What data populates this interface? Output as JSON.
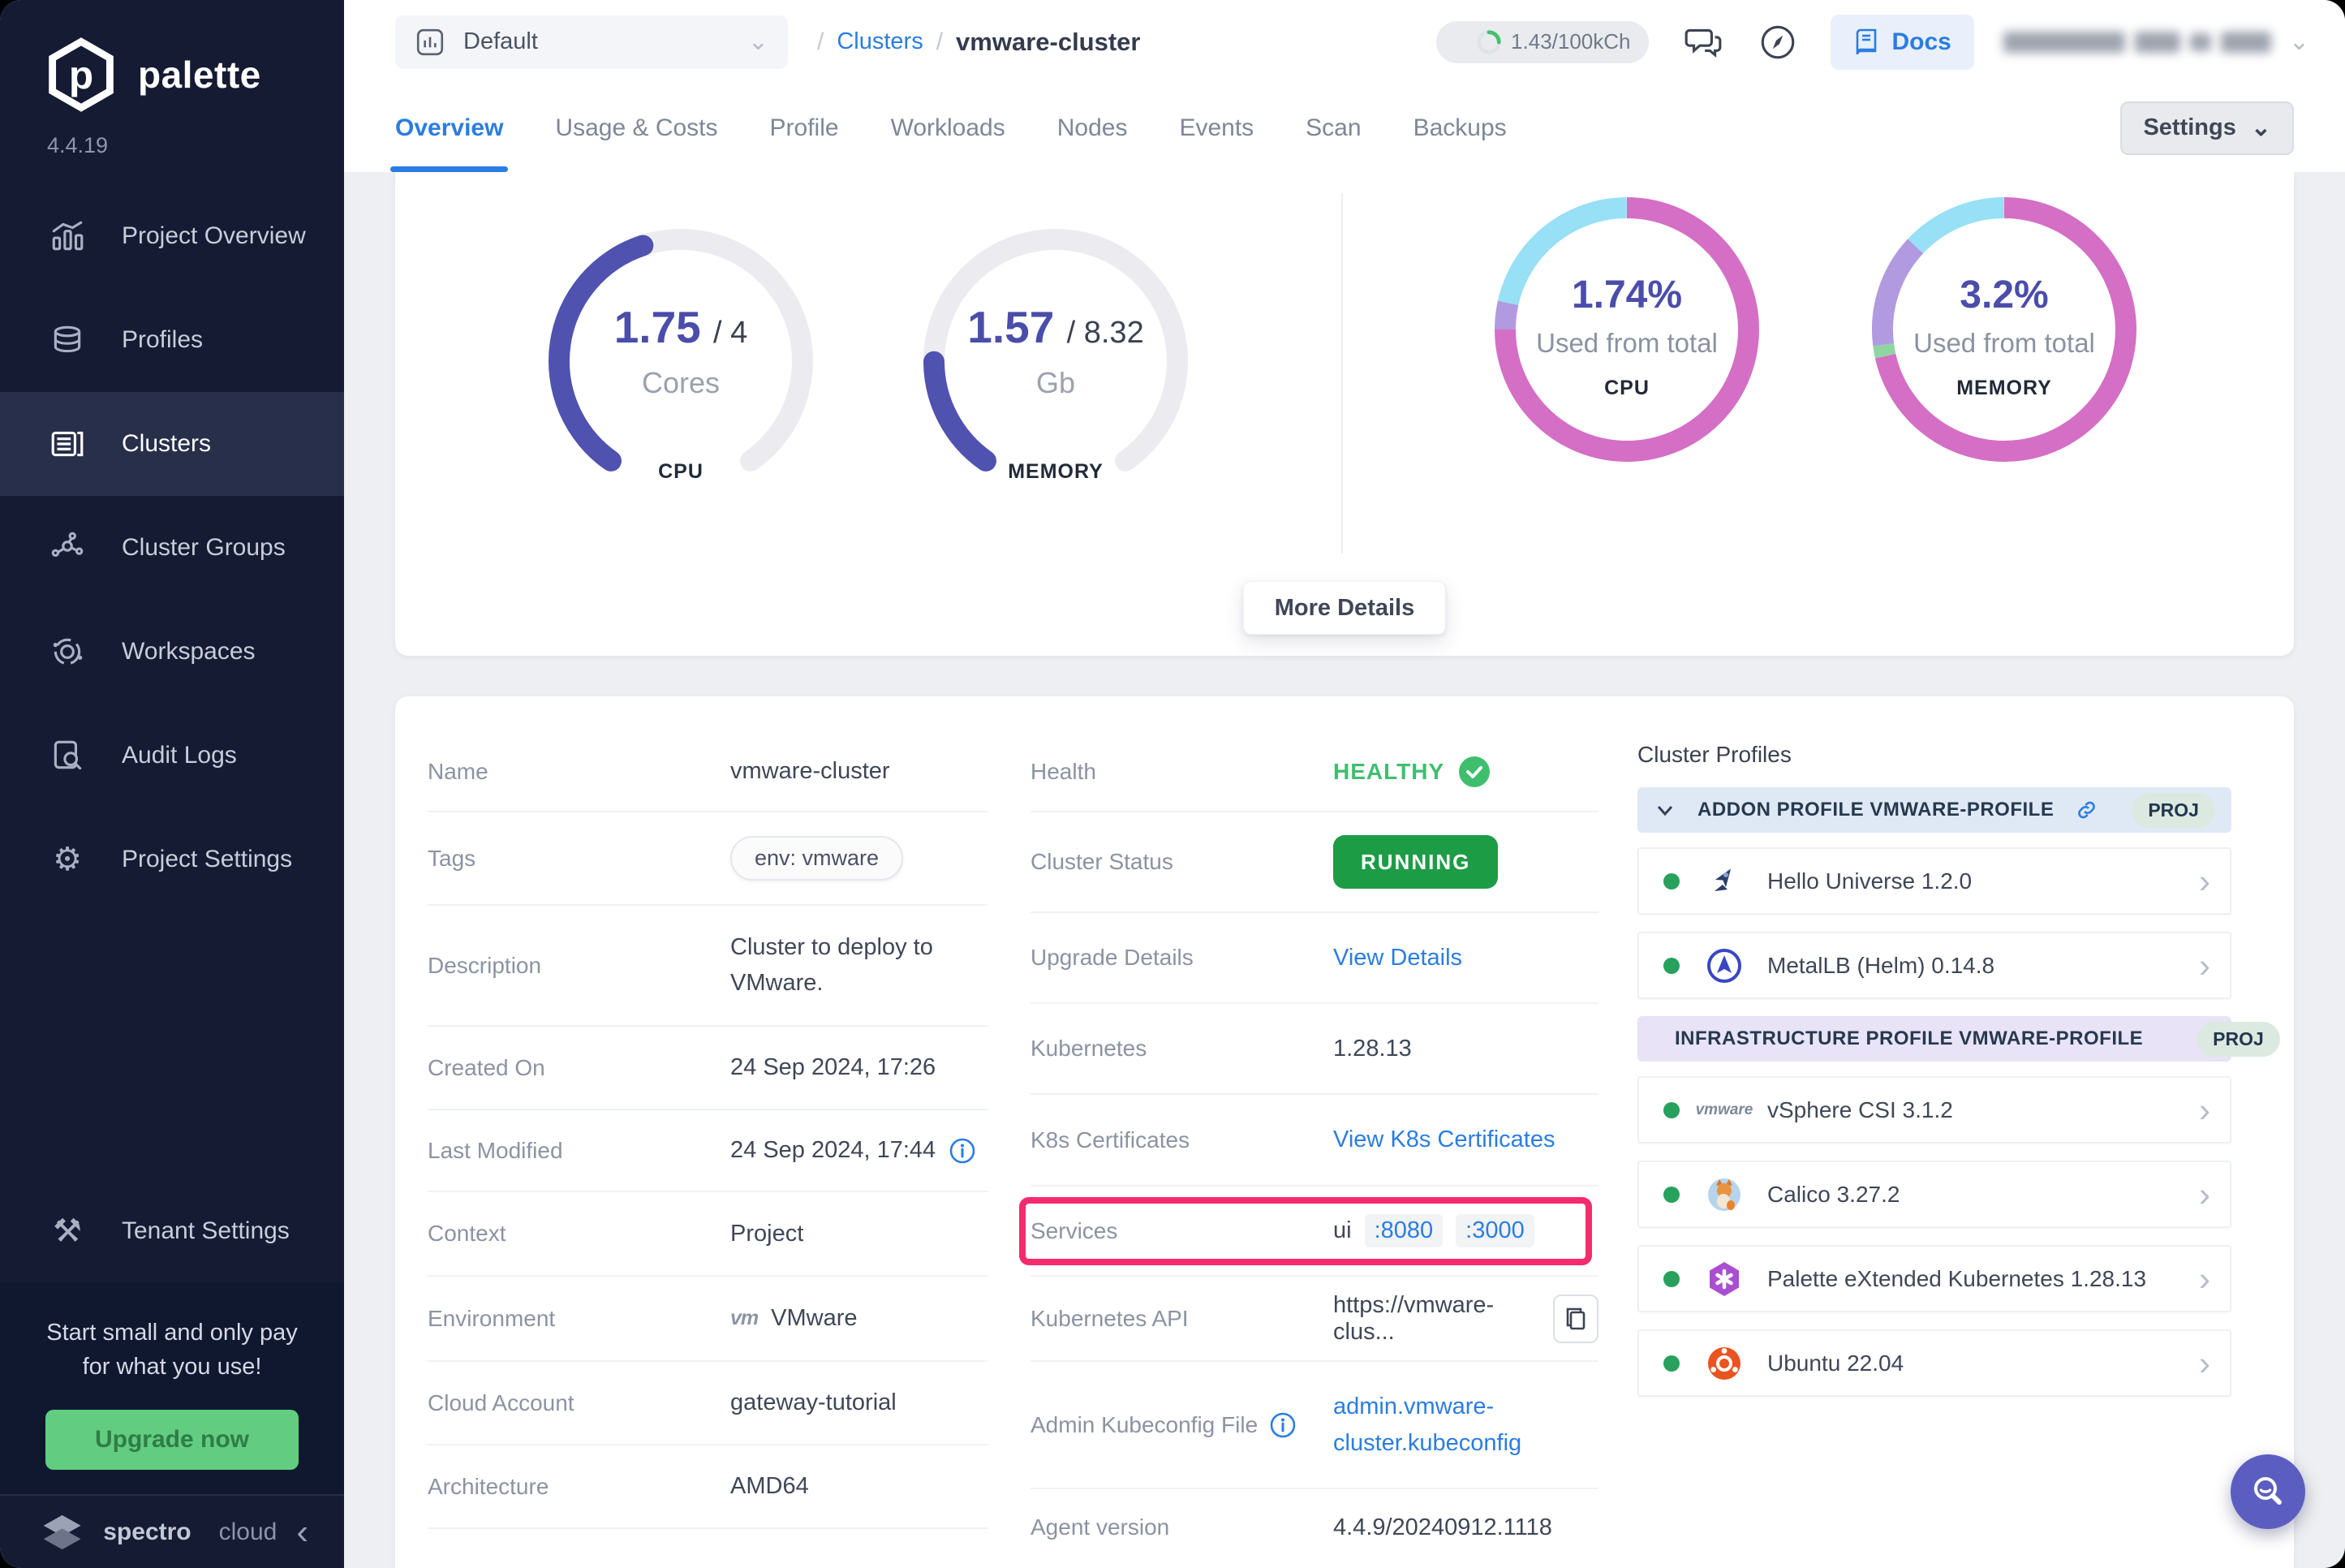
{
  "app": {
    "brand": "palette",
    "version": "4.4.19",
    "footer_brand_bold": "spectro",
    "footer_brand_light": "cloud"
  },
  "sidebar": {
    "items": [
      {
        "label": "Project Overview"
      },
      {
        "label": "Profiles"
      },
      {
        "label": "Clusters"
      },
      {
        "label": "Cluster Groups"
      },
      {
        "label": "Workspaces"
      },
      {
        "label": "Audit Logs"
      },
      {
        "label": "Project Settings"
      }
    ],
    "tenant_label": "Tenant Settings",
    "upsell": {
      "text": "Start small and only pay for what you use!",
      "button": "Upgrade now"
    }
  },
  "topbar": {
    "project": "Default",
    "sep": "/",
    "breadcrumb_link": "Clusters",
    "breadcrumb_current": "vmware-cluster",
    "usage": "1.43/100kCh",
    "docs": "Docs"
  },
  "tabs": {
    "items": [
      "Overview",
      "Usage & Costs",
      "Profile",
      "Workloads",
      "Nodes",
      "Events",
      "Scan",
      "Backups"
    ],
    "settings": "Settings"
  },
  "summary": {
    "more_details": "More Details"
  },
  "chart_data": [
    {
      "type": "gauge",
      "id": "cpu-gauge",
      "title": "CPU",
      "value": 1.75,
      "max": 4,
      "value_label": "1.75",
      "total_label": "/ 4",
      "unit": "Cores",
      "label": "CPU",
      "sweep_deg": 290,
      "color": "#5052b0",
      "track": "#ececf0"
    },
    {
      "type": "gauge",
      "id": "memory-gauge",
      "title": "MEMORY",
      "value": 1.57,
      "max": 8.32,
      "value_label": "1.57",
      "total_label": "/ 8.32",
      "unit": "Gb",
      "label": "MEMORY",
      "sweep_deg": 290,
      "color": "#5052b0",
      "track": "#ececf0"
    },
    {
      "type": "donut",
      "id": "cpu-donut",
      "title": "CPU used from total",
      "percent": 1.74,
      "percent_label": "1.74%",
      "caption": "Used from total",
      "label": "CPU",
      "segments": [
        {
          "name": "other",
          "color": "#d46fc5",
          "frac": 0.75
        },
        {
          "name": "reserved",
          "color": "#b29ae0",
          "frac": 0.035
        },
        {
          "name": "free",
          "color": "#97e0f6",
          "frac": 0.215
        }
      ]
    },
    {
      "type": "donut",
      "id": "memory-donut",
      "title": "Memory used from total",
      "percent": 3.2,
      "percent_label": "3.2%",
      "caption": "Used from total",
      "label": "MEMORY",
      "segments": [
        {
          "name": "other",
          "color": "#d46fc5",
          "frac": 0.715
        },
        {
          "name": "green",
          "color": "#8fd6a3",
          "frac": 0.015
        },
        {
          "name": "reserved",
          "color": "#b29ae0",
          "frac": 0.14
        },
        {
          "name": "free",
          "color": "#97e0f6",
          "frac": 0.13
        }
      ]
    }
  ],
  "details": {
    "left": [
      {
        "label": "Name",
        "value": "vmware-cluster"
      },
      {
        "label": "Tags",
        "value": "env: vmware"
      },
      {
        "label": "Description",
        "value": "Cluster to deploy to VMware."
      },
      {
        "label": "Created On",
        "value": "24 Sep 2024, 17:26"
      },
      {
        "label": "Last Modified",
        "value": "24 Sep 2024, 17:44"
      },
      {
        "label": "Context",
        "value": "Project"
      },
      {
        "label": "Environment",
        "value": "VMware",
        "icon": "vm"
      },
      {
        "label": "Cloud Account",
        "value": "gateway-tutorial"
      },
      {
        "label": "Architecture",
        "value": "AMD64"
      }
    ],
    "middle": [
      {
        "label": "Health",
        "value": "HEALTHY"
      },
      {
        "label": "Cluster Status",
        "value": "RUNNING"
      },
      {
        "label": "Upgrade Details",
        "value": "View Details"
      },
      {
        "label": "Kubernetes",
        "value": "1.28.13"
      },
      {
        "label": "K8s Certificates",
        "value": "View K8s Certificates"
      },
      {
        "label": "Services",
        "value_name": "ui",
        "ports": [
          ":8080",
          ":3000"
        ]
      },
      {
        "label": "Kubernetes API",
        "value": "https://vmware-clus..."
      },
      {
        "label": "Admin Kubeconfig File",
        "value": "admin.vmware-cluster.kubeconfig"
      },
      {
        "label": "Agent version",
        "value": "4.4.9/20240912.1118"
      }
    ]
  },
  "profiles": {
    "title": "Cluster Profiles",
    "sections": [
      {
        "header": "ADDON PROFILE VMWARE-PROFILE",
        "badge": "PROJ",
        "items": [
          {
            "name": "Hello Universe 1.2.0"
          },
          {
            "name": "MetalLB (Helm) 0.14.8"
          }
        ]
      },
      {
        "header": "INFRASTRUCTURE PROFILE VMWARE-PROFILE",
        "badge": "PROJ",
        "items": [
          {
            "name": "vSphere CSI 3.1.2"
          },
          {
            "name": "Calico 3.27.2"
          },
          {
            "name": "Palette eXtended Kubernetes 1.28.13"
          },
          {
            "name": "Ubuntu 22.04"
          }
        ]
      }
    ]
  }
}
